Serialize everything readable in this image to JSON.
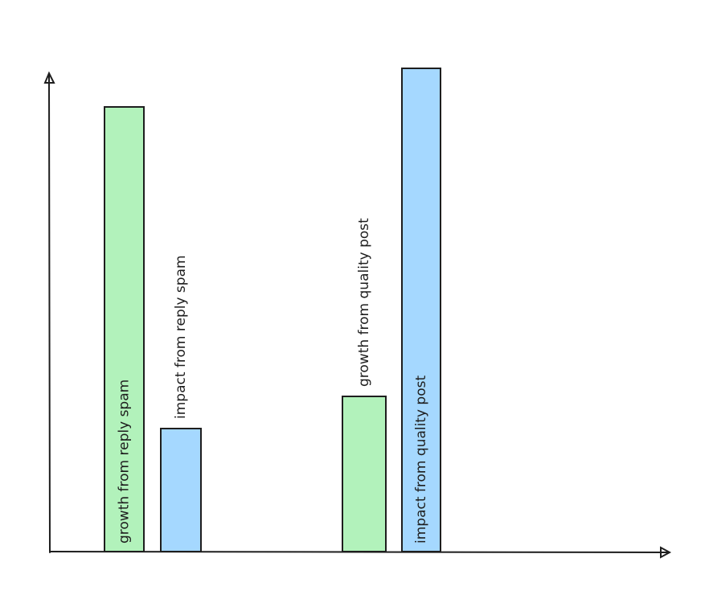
{
  "chart_data": {
    "type": "bar",
    "categories": [
      "growth from reply spam",
      "impact from reply spam",
      "growth from quality post",
      "impact from quality post"
    ],
    "values": [
      553,
      153,
      193,
      601
    ],
    "colors": [
      "#b2f2bb",
      "#a5d8ff",
      "#b2f2bb",
      "#a5d8ff"
    ],
    "ylim": [
      0,
      620
    ]
  }
}
